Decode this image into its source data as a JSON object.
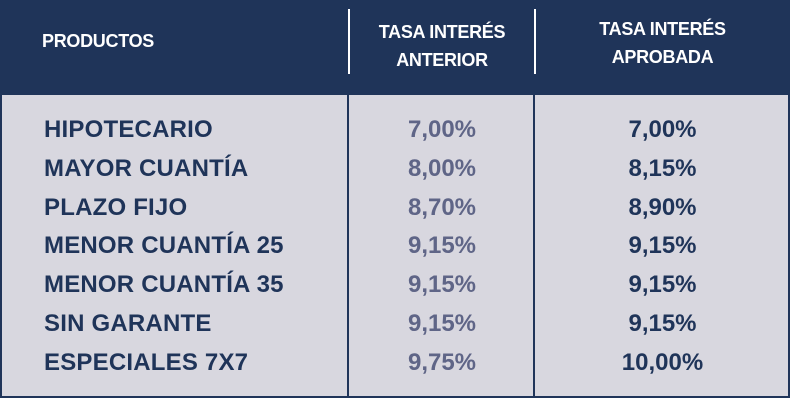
{
  "colors": {
    "header_bg": "#1f3459",
    "body_bg": "#d8d7df",
    "previous_rate": "#5f6587",
    "approved_rate": "#1f3459"
  },
  "header": {
    "products": "PRODUCTOS",
    "previous_line1": "TASA INTERÉS",
    "previous_line2": "ANTERIOR",
    "approved_line1": "TASA INTERÉS",
    "approved_line2": "APROBADA"
  },
  "rows": [
    {
      "product": "HIPOTECARIO",
      "previous": "7,00%",
      "approved": "7,00%"
    },
    {
      "product": "MAYOR CUANTÍA",
      "previous": "8,00%",
      "approved": "8,15%"
    },
    {
      "product": "PLAZO FIJO",
      "previous": "8,70%",
      "approved": "8,90%"
    },
    {
      "product": "MENOR CUANTÍA 25",
      "previous": "9,15%",
      "approved": "9,15%"
    },
    {
      "product": "MENOR CUANTÍA 35",
      "previous": "9,15%",
      "approved": "9,15%"
    },
    {
      "product": "SIN GARANTE",
      "previous": "9,15%",
      "approved": "9,15%"
    },
    {
      "product": "ESPECIALES 7X7",
      "previous": "9,75%",
      "approved": "10,00%"
    }
  ]
}
